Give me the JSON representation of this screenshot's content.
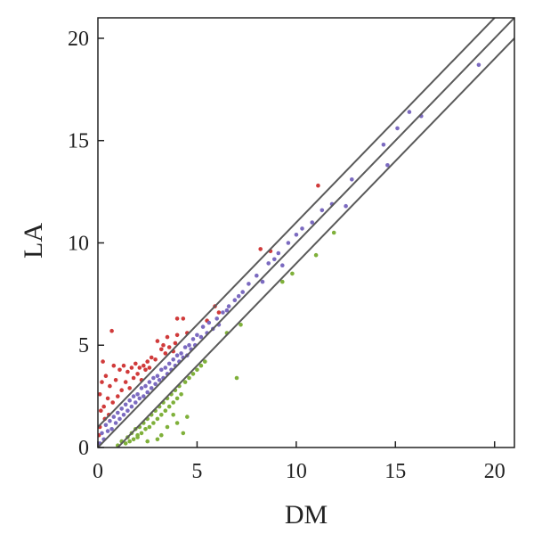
{
  "chart_data": {
    "type": "scatter",
    "title": "",
    "xlabel": "DM",
    "ylabel": "LA",
    "xlim": [
      0,
      21
    ],
    "ylim": [
      0,
      21
    ],
    "xticks": [
      0,
      5,
      10,
      15,
      20
    ],
    "yticks": [
      0,
      5,
      10,
      15,
      20
    ],
    "grid": false,
    "legend": "none",
    "reference_lines": [
      {
        "name": "upper-line",
        "intercept": 1,
        "slope": 1,
        "color": "#5a5a5a"
      },
      {
        "name": "identity-line",
        "intercept": 0,
        "slope": 1,
        "color": "#5a5a5a"
      },
      {
        "name": "lower-line",
        "intercept": -1,
        "slope": 1,
        "color": "#5a5a5a"
      }
    ],
    "series": [
      {
        "color": "#d03a3a",
        "points": [
          [
            0.05,
            0.6
          ],
          [
            0.1,
            1.0
          ],
          [
            0.1,
            2.6
          ],
          [
            0.15,
            1.8
          ],
          [
            0.2,
            3.2
          ],
          [
            0.25,
            4.2
          ],
          [
            0.3,
            2.0
          ],
          [
            0.35,
            1.4
          ],
          [
            0.4,
            3.5
          ],
          [
            0.5,
            2.4
          ],
          [
            0.55,
            1.6
          ],
          [
            0.6,
            3.0
          ],
          [
            0.7,
            5.7
          ],
          [
            0.75,
            2.2
          ],
          [
            0.8,
            4.0
          ],
          [
            0.9,
            3.3
          ],
          [
            1.0,
            2.5
          ],
          [
            1.1,
            3.8
          ],
          [
            1.2,
            2.8
          ],
          [
            1.3,
            4.0
          ],
          [
            1.4,
            3.2
          ],
          [
            1.5,
            3.7
          ],
          [
            1.6,
            2.9
          ],
          [
            1.7,
            3.9
          ],
          [
            1.8,
            3.4
          ],
          [
            1.9,
            4.1
          ],
          [
            2.0,
            3.6
          ],
          [
            2.1,
            3.9
          ],
          [
            2.2,
            3.3
          ],
          [
            2.3,
            4.0
          ],
          [
            2.4,
            3.8
          ],
          [
            2.5,
            4.2
          ],
          [
            2.6,
            3.9
          ],
          [
            2.7,
            4.4
          ],
          [
            2.9,
            4.3
          ],
          [
            3.0,
            5.2
          ],
          [
            3.2,
            4.8
          ],
          [
            3.3,
            5.0
          ],
          [
            3.4,
            4.6
          ],
          [
            3.5,
            5.4
          ],
          [
            3.6,
            4.9
          ],
          [
            3.8,
            4.7
          ],
          [
            3.9,
            5.1
          ],
          [
            4.0,
            5.5
          ],
          [
            4.0,
            6.3
          ],
          [
            4.3,
            6.3
          ],
          [
            4.5,
            5.6
          ],
          [
            5.5,
            6.2
          ],
          [
            5.9,
            6.9
          ],
          [
            6.1,
            6.6
          ],
          [
            8.2,
            9.7
          ],
          [
            8.7,
            9.6
          ],
          [
            11.1,
            12.8
          ]
        ]
      },
      {
        "color": "#7b6ac0",
        "points": [
          [
            0.1,
            0.2
          ],
          [
            0.2,
            0.7
          ],
          [
            0.3,
            0.4
          ],
          [
            0.4,
            1.1
          ],
          [
            0.5,
            0.8
          ],
          [
            0.6,
            1.3
          ],
          [
            0.7,
            0.9
          ],
          [
            0.8,
            1.5
          ],
          [
            0.9,
            1.2
          ],
          [
            1.0,
            1.7
          ],
          [
            1.1,
            1.4
          ],
          [
            1.2,
            1.9
          ],
          [
            1.3,
            1.6
          ],
          [
            1.4,
            2.1
          ],
          [
            1.5,
            1.8
          ],
          [
            1.6,
            2.3
          ],
          [
            1.7,
            2.0
          ],
          [
            1.8,
            2.5
          ],
          [
            1.9,
            2.2
          ],
          [
            2.0,
            2.6
          ],
          [
            2.1,
            2.4
          ],
          [
            2.2,
            2.9
          ],
          [
            2.3,
            2.5
          ],
          [
            2.4,
            3.0
          ],
          [
            2.5,
            2.7
          ],
          [
            2.6,
            3.2
          ],
          [
            2.7,
            2.9
          ],
          [
            2.8,
            3.4
          ],
          [
            2.9,
            3.1
          ],
          [
            3.0,
            3.5
          ],
          [
            3.1,
            3.3
          ],
          [
            3.2,
            3.8
          ],
          [
            3.3,
            3.4
          ],
          [
            3.4,
            3.9
          ],
          [
            3.5,
            3.6
          ],
          [
            3.6,
            4.1
          ],
          [
            3.7,
            3.8
          ],
          [
            3.8,
            4.3
          ],
          [
            3.9,
            4.0
          ],
          [
            4.0,
            4.5
          ],
          [
            4.1,
            4.2
          ],
          [
            4.2,
            4.6
          ],
          [
            4.3,
            4.4
          ],
          [
            4.4,
            4.9
          ],
          [
            4.5,
            4.5
          ],
          [
            4.6,
            5.0
          ],
          [
            4.7,
            4.8
          ],
          [
            4.8,
            5.3
          ],
          [
            4.9,
            5.0
          ],
          [
            5.0,
            5.5
          ],
          [
            5.2,
            5.4
          ],
          [
            5.3,
            5.9
          ],
          [
            5.5,
            5.6
          ],
          [
            5.6,
            6.1
          ],
          [
            5.8,
            5.8
          ],
          [
            6.0,
            6.3
          ],
          [
            6.1,
            6.0
          ],
          [
            6.3,
            6.6
          ],
          [
            6.5,
            6.7
          ],
          [
            6.6,
            6.9
          ],
          [
            6.9,
            7.2
          ],
          [
            7.1,
            7.4
          ],
          [
            7.3,
            7.6
          ],
          [
            7.6,
            8.0
          ],
          [
            8.0,
            8.4
          ],
          [
            8.3,
            8.1
          ],
          [
            8.6,
            9.0
          ],
          [
            8.9,
            9.2
          ],
          [
            9.1,
            9.5
          ],
          [
            9.3,
            8.9
          ],
          [
            9.6,
            10.0
          ],
          [
            10.0,
            10.4
          ],
          [
            10.3,
            10.7
          ],
          [
            10.8,
            11.0
          ],
          [
            11.3,
            11.6
          ],
          [
            11.8,
            11.9
          ],
          [
            12.5,
            11.8
          ],
          [
            12.8,
            13.1
          ],
          [
            14.4,
            14.8
          ],
          [
            14.6,
            13.8
          ],
          [
            15.1,
            15.6
          ],
          [
            15.7,
            16.4
          ],
          [
            16.3,
            16.2
          ],
          [
            19.2,
            18.7
          ]
        ]
      },
      {
        "color": "#7fb03a",
        "points": [
          [
            1.0,
            0.1
          ],
          [
            1.2,
            0.3
          ],
          [
            1.4,
            0.2
          ],
          [
            1.5,
            0.5
          ],
          [
            1.6,
            0.3
          ],
          [
            1.7,
            0.7
          ],
          [
            1.8,
            0.4
          ],
          [
            1.9,
            0.9
          ],
          [
            2.0,
            0.6
          ],
          [
            2.1,
            1.0
          ],
          [
            2.2,
            0.7
          ],
          [
            2.3,
            1.2
          ],
          [
            2.4,
            0.9
          ],
          [
            2.5,
            1.4
          ],
          [
            2.6,
            1.0
          ],
          [
            2.7,
            1.6
          ],
          [
            2.8,
            1.2
          ],
          [
            2.9,
            1.8
          ],
          [
            3.0,
            1.4
          ],
          [
            3.1,
            2.0
          ],
          [
            3.2,
            1.6
          ],
          [
            3.3,
            2.2
          ],
          [
            3.4,
            1.8
          ],
          [
            3.5,
            2.4
          ],
          [
            3.6,
            2.0
          ],
          [
            3.7,
            2.6
          ],
          [
            3.8,
            2.2
          ],
          [
            3.9,
            2.8
          ],
          [
            4.0,
            2.4
          ],
          [
            4.1,
            3.0
          ],
          [
            4.2,
            2.6
          ],
          [
            4.4,
            3.2
          ],
          [
            4.6,
            3.4
          ],
          [
            4.8,
            3.6
          ],
          [
            5.0,
            3.8
          ],
          [
            5.2,
            4.0
          ],
          [
            5.4,
            4.2
          ],
          [
            2.0,
            0.5
          ],
          [
            2.5,
            0.3
          ],
          [
            3.0,
            0.4
          ],
          [
            3.5,
            1.0
          ],
          [
            4.0,
            1.2
          ],
          [
            4.5,
            1.5
          ],
          [
            3.2,
            0.6
          ],
          [
            3.8,
            1.6
          ],
          [
            7.0,
            3.4
          ],
          [
            9.3,
            8.1
          ],
          [
            9.8,
            8.5
          ],
          [
            11.0,
            9.4
          ],
          [
            11.9,
            10.5
          ],
          [
            6.5,
            5.6
          ],
          [
            7.2,
            6.0
          ],
          [
            4.3,
            0.7
          ]
        ]
      }
    ]
  }
}
